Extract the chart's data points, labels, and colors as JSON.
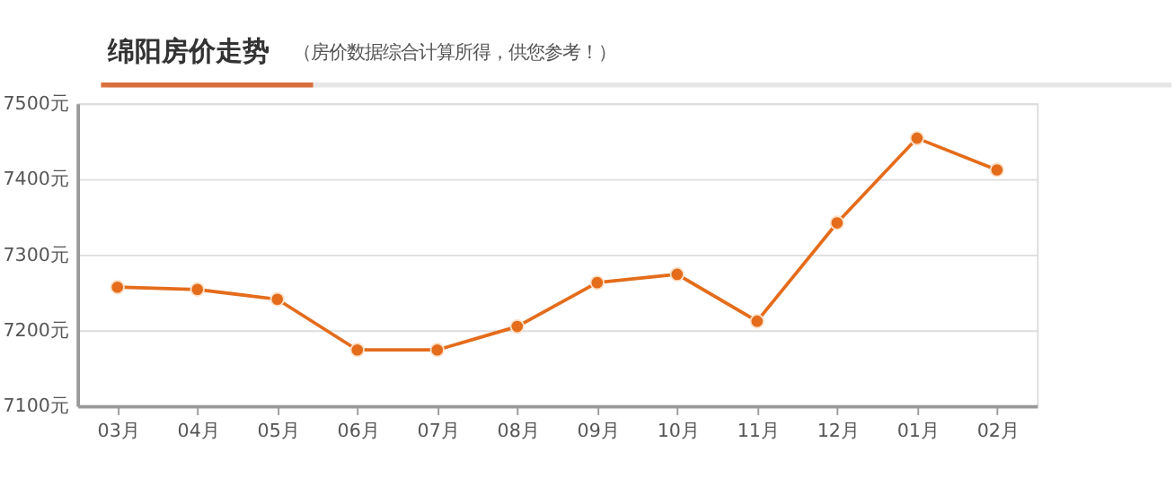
{
  "chart_data": {
    "type": "line",
    "title": "绵阳房价走势",
    "subtitle": "（房价数据综合计算所得，供您参考！）",
    "categories": [
      "03月",
      "04月",
      "05月",
      "06月",
      "07月",
      "08月",
      "09月",
      "10月",
      "11月",
      "12月",
      "01月",
      "02月"
    ],
    "series": [
      {
        "color": "#e46c1b",
        "values": [
          7257,
          7254,
          7241,
          7174,
          7174,
          7205,
          7263,
          7274,
          7212,
          7342,
          7454,
          7412
        ]
      }
    ],
    "ylim": [
      7100,
      7500
    ],
    "yticks": [
      {
        "value": 7100,
        "label": "7100元"
      },
      {
        "value": 7200,
        "label": "7200元"
      },
      {
        "value": 7300,
        "label": "7300元"
      },
      {
        "value": 7400,
        "label": "7400元"
      },
      {
        "value": 7500,
        "label": "7500元"
      }
    ],
    "grid": "y",
    "marker": "circle",
    "line_style": "solid",
    "legend": false
  }
}
